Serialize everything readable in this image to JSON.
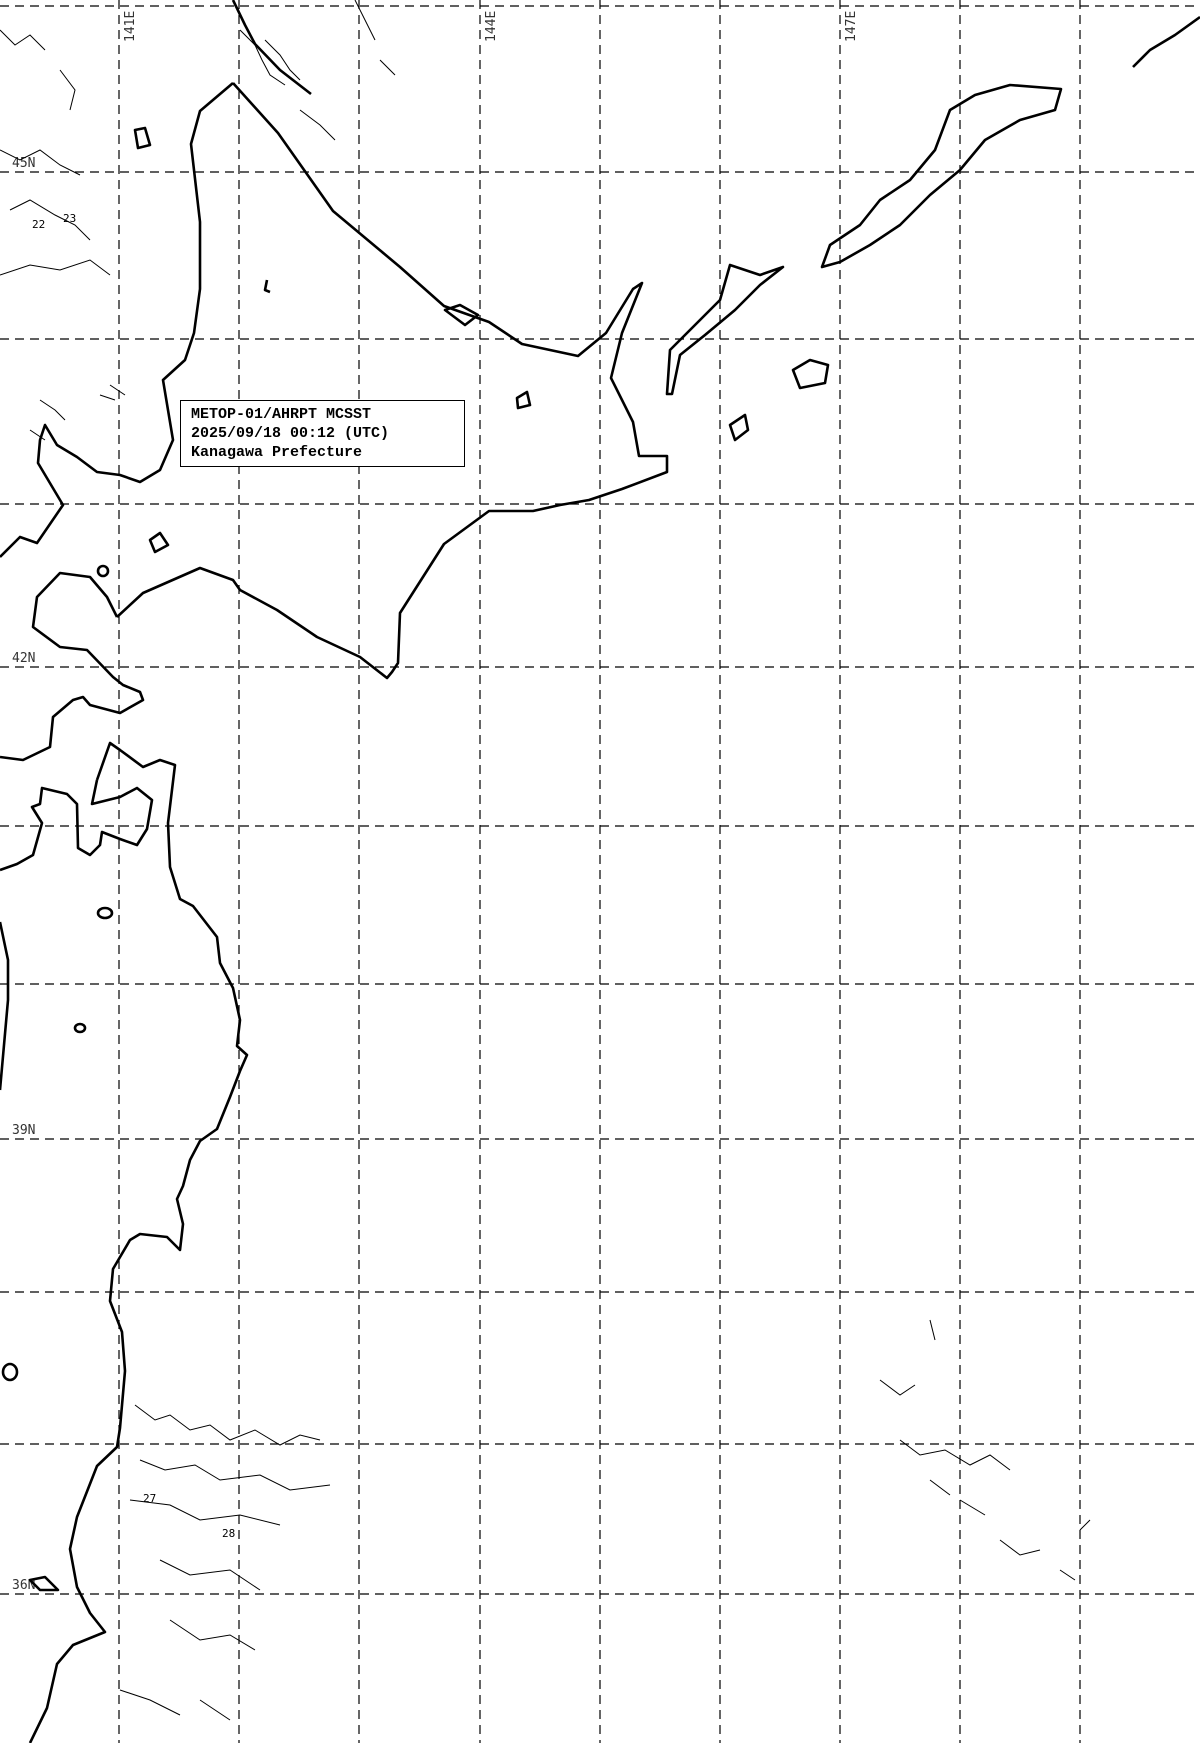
{
  "info_box": {
    "line1": "METOP-01/AHRPT MCSST",
    "line2": "2025/09/18 00:12 (UTC)",
    "line3": "Kanagawa Prefecture"
  },
  "longitude_labels": [
    "141E",
    "144E",
    "147E"
  ],
  "latitude_labels": [
    "45N",
    "42N",
    "39N",
    "36N"
  ],
  "contour_labels": [
    "22",
    "23",
    "27",
    "28"
  ],
  "colors": {
    "background": "#ffffff",
    "lines": "#000000"
  }
}
